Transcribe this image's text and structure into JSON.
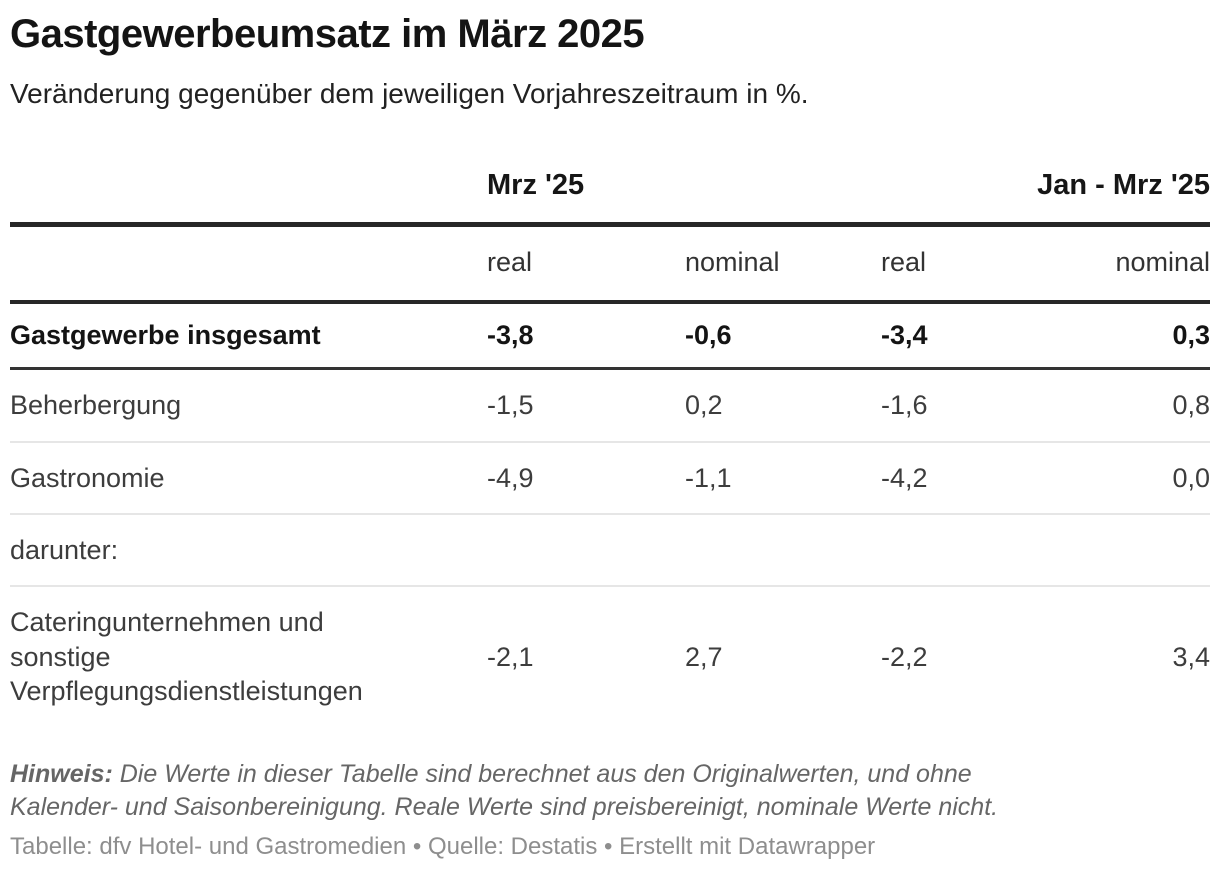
{
  "header": {
    "title": "Gastgewerbeumsatz im März 2025",
    "subtitle": "Veränderung gegenüber dem jeweiligen Vorjahreszeitraum in %."
  },
  "table": {
    "column_groups": [
      {
        "label": "Mrz '25",
        "span": 2
      },
      {
        "label": "Jan - Mrz '25",
        "span": 2
      }
    ],
    "sub_headers": [
      "real",
      "nominal",
      "real",
      "nominal"
    ],
    "rows": [
      {
        "label": "Gastgewerbe insgesamt",
        "bold": true,
        "values": [
          "-3,8",
          "-0,6",
          "-3,4",
          "0,3"
        ]
      },
      {
        "label": "Beherbergung",
        "bold": false,
        "values": [
          "-1,5",
          "0,2",
          "-1,6",
          "0,8"
        ]
      },
      {
        "label": "Gastronomie",
        "bold": false,
        "values": [
          "-4,9",
          "-1,1",
          "-4,2",
          "0,0"
        ]
      },
      {
        "label": "darunter:",
        "bold": false,
        "values": [
          "",
          "",
          "",
          ""
        ]
      },
      {
        "label": "Cateringunternehmen und sonstige Verpflegungsdienstleistungen",
        "bold": false,
        "values": [
          "-2,1",
          "2,7",
          "-2,2",
          "3,4"
        ]
      }
    ]
  },
  "footer": {
    "note_label": "Hinweis:",
    "note_text": "Die Werte in dieser Tabelle sind berechnet aus den Originalwerten, und ohne Kalender- und Saisonbereinigung. Reale Werte sind preisbereinigt, nominale Werte nicht.",
    "attribution": "Tabelle: dfv Hotel- und Gastromedien • Quelle: Destatis • Erstellt mit Datawrapper"
  },
  "colors": {
    "title_text": "#141414",
    "body_text": "#3d3d3d",
    "heavy_rule": "#272727",
    "light_rule": "#e6e6e6",
    "note_text": "#666666",
    "attribution_text": "#8e8e8e",
    "background": "#ffffff"
  },
  "chart_data": {
    "type": "table",
    "title": "Gastgewerbeumsatz im März 2025",
    "subtitle": "Veränderung gegenüber dem jeweiligen Vorjahreszeitraum in %.",
    "column_groups": [
      "Mrz '25",
      "Jan - Mrz '25"
    ],
    "columns": [
      "Mrz '25 real",
      "Mrz '25 nominal",
      "Jan - Mrz '25 real",
      "Jan - Mrz '25 nominal"
    ],
    "rows": [
      {
        "label": "Gastgewerbe insgesamt",
        "values": [
          -3.8,
          -0.6,
          -3.4,
          0.3
        ]
      },
      {
        "label": "Beherbergung",
        "values": [
          -1.5,
          0.2,
          -1.6,
          0.8
        ]
      },
      {
        "label": "Gastronomie",
        "values": [
          -4.9,
          -1.1,
          -4.2,
          0.0
        ]
      },
      {
        "label": "darunter:",
        "values": [
          null,
          null,
          null,
          null
        ]
      },
      {
        "label": "Cateringunternehmen und sonstige Verpflegungsdienstleistungen",
        "values": [
          -2.1,
          2.7,
          -2.2,
          3.4
        ]
      }
    ],
    "unit": "%",
    "notes": "Werte berechnet aus Originalwerten, ohne Kalender- und Saisonbereinigung; real = preisbereinigt, nominal = nicht preisbereinigt"
  }
}
